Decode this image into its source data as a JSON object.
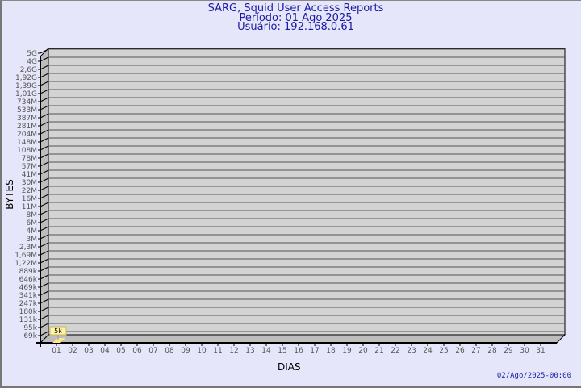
{
  "header": {
    "title": "SARG, Squid User Access Reports",
    "period": "Período: 01 Ago 2025",
    "user": "Usuário: 192.168.0.61"
  },
  "timestamp": "02/Ago/2025-00:00",
  "chart_data": {
    "type": "bar",
    "title": "SARG, Squid User Access Reports",
    "xlabel": "DIAS",
    "ylabel": "BYTES",
    "y_scale": "log",
    "y_ticks": [
      "5G",
      "4G",
      "2,6G",
      "1,92G",
      "1,39G",
      "1,01G",
      "734M",
      "533M",
      "387M",
      "281M",
      "204M",
      "148M",
      "108M",
      "78M",
      "57M",
      "41M",
      "30M",
      "22M",
      "16M",
      "11M",
      "8M",
      "6M",
      "4M",
      "3M",
      "2,3M",
      "1,69M",
      "1,22M",
      "889k",
      "646k",
      "469k",
      "341k",
      "247k",
      "180k",
      "131k",
      "95k",
      "69k"
    ],
    "categories": [
      "01",
      "02",
      "03",
      "04",
      "05",
      "06",
      "07",
      "08",
      "09",
      "10",
      "11",
      "12",
      "13",
      "14",
      "15",
      "16",
      "17",
      "18",
      "19",
      "20",
      "21",
      "22",
      "23",
      "24",
      "25",
      "26",
      "27",
      "28",
      "29",
      "30",
      "31"
    ],
    "values": [
      {
        "day": "01",
        "bytes": 5000,
        "label": "5k"
      }
    ],
    "grid": true,
    "colors": {
      "wall": "#d3d3d3",
      "side": "#bdbdbd",
      "bar": "#ffe88a",
      "label_bg": "#fff3a8",
      "text": "#1a1aa6"
    }
  }
}
